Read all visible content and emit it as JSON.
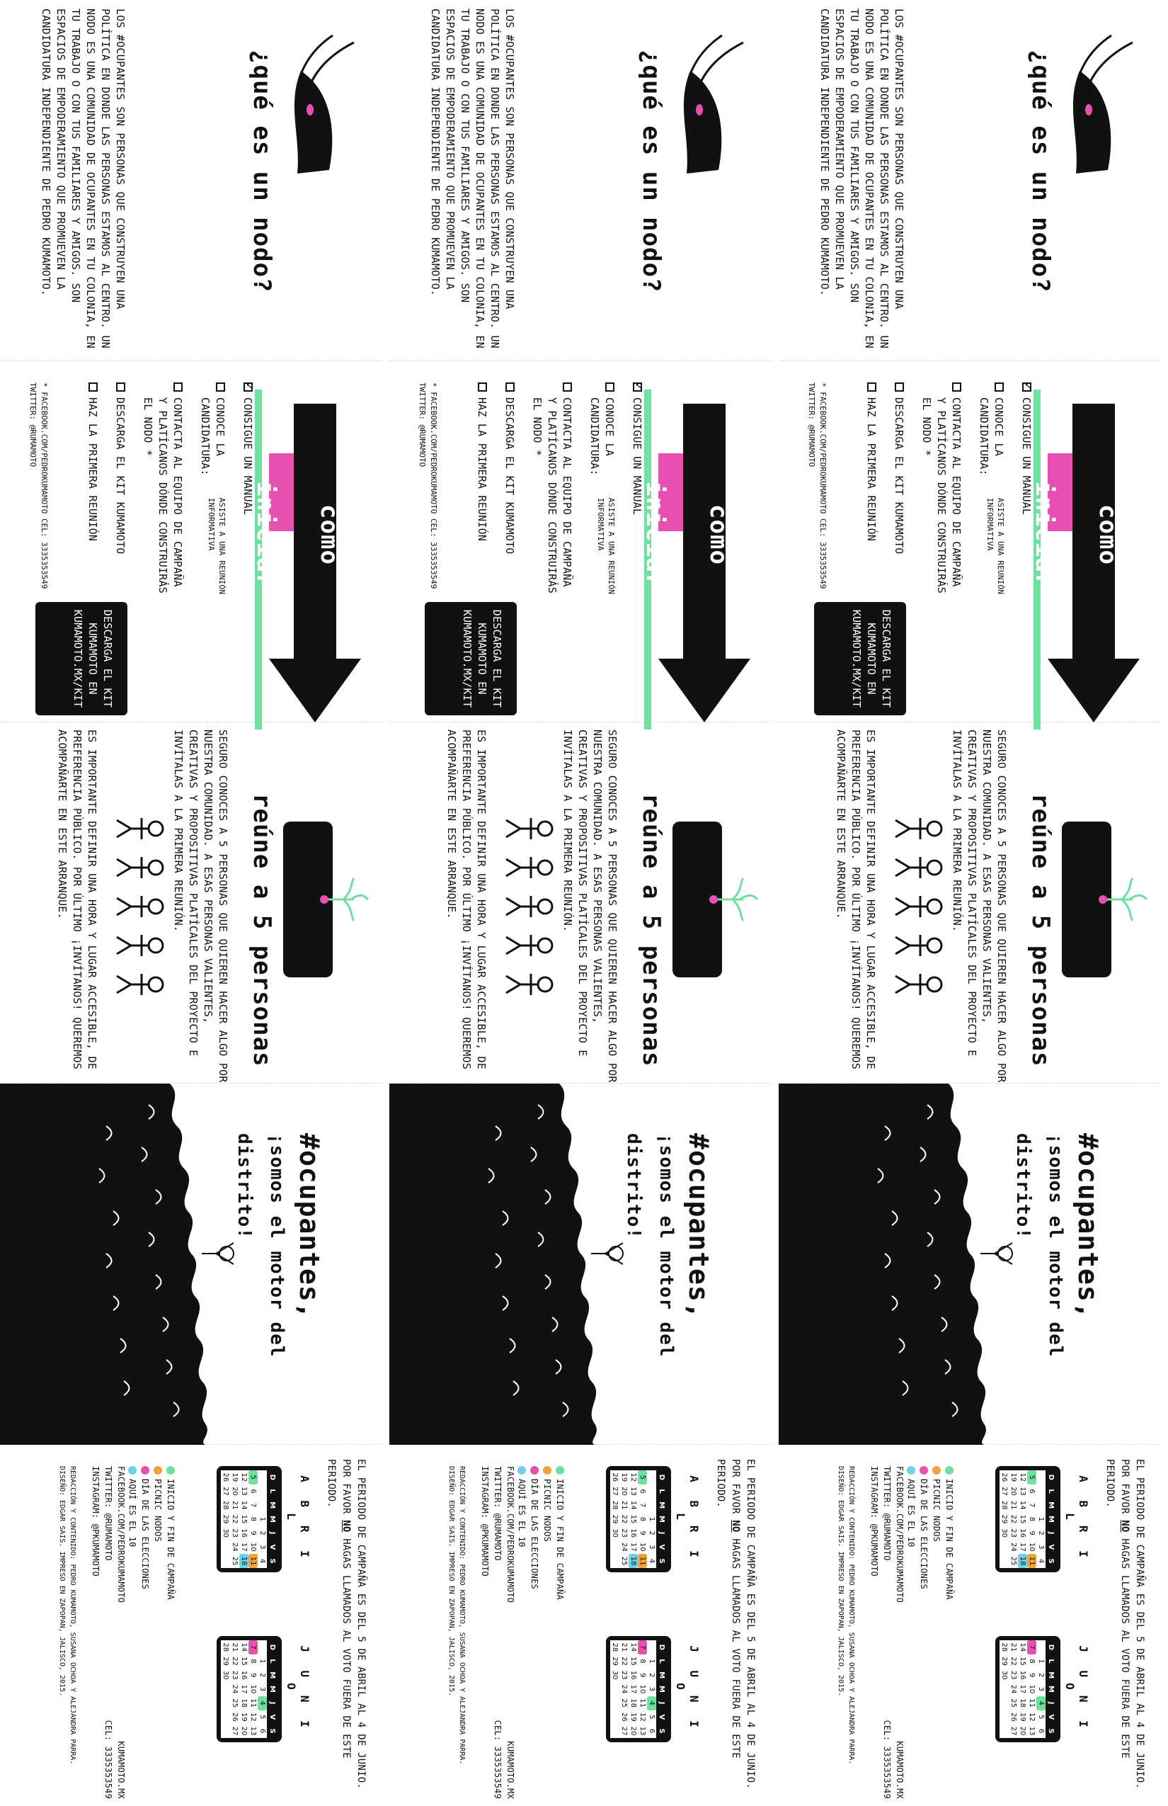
{
  "colors": {
    "green": "#6ee0a0",
    "pink": "#e84fb3",
    "orange": "#f2a23a",
    "blue": "#6fd0e8",
    "ink": "#111111"
  },
  "panel1": {
    "title": "¿qué es un nodo?",
    "body": "Los #ocupantes son personas que construyen una política en donde las personas estamos al centro. Un nodo es una comunidad de ocupantes en tu colonia, en tu trabajo o con tus familiares y amigos. Son espacios de empoderamiento que promueven la candidatura independiente de Pedro Kumamoto."
  },
  "panel2": {
    "title": "cómo iniciar",
    "items": [
      {
        "label": "Consigue un manual",
        "checked": true
      },
      {
        "label": "Conoce la candidatura:",
        "note": "asiste a una reunión informativa",
        "checked": false
      },
      {
        "label": "Contacta al equipo de campaña y platícanos dónde construirás el nodo *",
        "checked": false
      },
      {
        "label": "Descarga el kit Kumamoto",
        "checked": false
      },
      {
        "label": "Haz la primera reunión",
        "checked": false
      }
    ],
    "footnote": "* facebook.com/pedrokumamoto   cel: 3335353549",
    "footnote2": "twitter: @rumamoto",
    "download": "Descarga el kit Kumamoto en kumamoto.mx/kit"
  },
  "panel3": {
    "title": "reúne a 5 personas",
    "body1": "Seguro conoces a 5 personas que quieren hacer algo por nuestra comunidad. A esas personas valientes, creativas y propositivas platícales del proyecto e invítalas a la primera reunión.",
    "body2": "Es importante definir una hora y lugar accesible, de preferencia público. Por último ¡invítanos! Queremos acompañarte en este arranque."
  },
  "panel4": {
    "hashtag": "#ocupantes,",
    "subtitle": "¡somos el motor del distrito!"
  },
  "panel5": {
    "intro_line1": "El periodo de campaña es del 5 de abril al 4 de junio.",
    "intro_line2a": "Por favor ",
    "intro_no": "no",
    "intro_line2b": " hagas llamados al voto fuera de este periodo.",
    "april": {
      "name": "A B R I L",
      "weekdays": [
        "D",
        "L",
        "M",
        "M",
        "J",
        "V",
        "S"
      ],
      "weeks": [
        [
          "",
          "",
          "",
          "1",
          "2",
          "3",
          "4"
        ],
        [
          "5",
          "6",
          "7",
          "8",
          "9",
          "10",
          "11"
        ],
        [
          "12",
          "13",
          "14",
          "15",
          "16",
          "17",
          "18"
        ],
        [
          "19",
          "20",
          "21",
          "22",
          "23",
          "24",
          "25"
        ],
        [
          "26",
          "27",
          "28",
          "29",
          "30",
          "",
          ""
        ]
      ]
    },
    "june": {
      "name": "J U N I O",
      "weekdays": [
        "D",
        "L",
        "M",
        "M",
        "J",
        "V",
        "S"
      ],
      "weeks": [
        [
          "",
          "1",
          "2",
          "3",
          "4",
          "5",
          "6"
        ],
        [
          "7",
          "8",
          "9",
          "10",
          "11",
          "12",
          "13"
        ],
        [
          "14",
          "15",
          "16",
          "17",
          "18",
          "19",
          "20"
        ],
        [
          "21",
          "22",
          "23",
          "24",
          "25",
          "26",
          "27"
        ],
        [
          "28",
          "29",
          "30",
          "",
          "",
          "",
          ""
        ]
      ]
    },
    "legend": [
      {
        "label": "Inicio y fin de campaña",
        "color": "green"
      },
      {
        "label": "Picnic nodos",
        "color": "orange"
      },
      {
        "label": "Día de las elecciones",
        "color": "pink"
      },
      {
        "label": "Aquí es el 10",
        "color": "blue"
      }
    ],
    "contacts": [
      "Facebook.com/pedrokumamoto",
      "Twitter: @rumamoto",
      "Instagram: @pkumamoto"
    ],
    "site": "kumamoto.mx",
    "cel": "cel: 3335353549",
    "credits1": "Redacción y contenido: Pedro Kumamoto, Susana Ochoa y Alejandra Parra.",
    "credits2": "Diseño: Edgar Sais. Impreso en Zapopan, Jalisco, 2015."
  }
}
